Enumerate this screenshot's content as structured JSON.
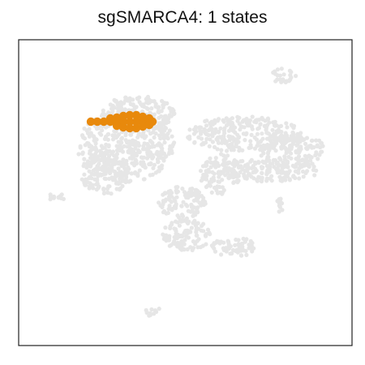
{
  "chart_data": {
    "type": "scatter",
    "title": "sgSMARCA4: 1 states",
    "xlabel": "",
    "ylabel": "",
    "axes_ticks": false,
    "grid": false,
    "background_color": "#e6e6e6",
    "highlight_color": "#e8890c",
    "series": [
      {
        "role": "background-cells",
        "color": "#e6e6e6",
        "regions": [
          {
            "kind": "ellipse",
            "cx": 155,
            "cy": 180,
            "rx": 60,
            "ry": 45
          },
          {
            "kind": "ellipse",
            "cx": 130,
            "cy": 215,
            "rx": 30,
            "ry": 25
          },
          {
            "kind": "ellipse",
            "cx": 170,
            "cy": 140,
            "rx": 45,
            "ry": 22
          },
          {
            "kind": "ellipse",
            "cx": 225,
            "cy": 250,
            "rx": 30,
            "ry": 20
          },
          {
            "kind": "ellipse",
            "cx": 230,
            "cy": 290,
            "rx": 30,
            "ry": 20
          },
          {
            "kind": "ellipse",
            "cx": 290,
            "cy": 305,
            "rx": 30,
            "ry": 12
          },
          {
            "kind": "ellipse",
            "cx": 300,
            "cy": 165,
            "rx": 70,
            "ry": 22
          },
          {
            "kind": "ellipse",
            "cx": 360,
            "cy": 185,
            "rx": 40,
            "ry": 22
          },
          {
            "kind": "ellipse",
            "cx": 330,
            "cy": 210,
            "rx": 65,
            "ry": 14
          },
          {
            "kind": "ellipse",
            "cx": 272,
            "cy": 215,
            "rx": 25,
            "ry": 25
          },
          {
            "kind": "ellipse",
            "cx": 349,
            "cy": 93,
            "rx": 16,
            "ry": 9
          },
          {
            "kind": "ellipse",
            "cx": 69,
            "cy": 243,
            "rx": 12,
            "ry": 4
          },
          {
            "kind": "ellipse",
            "cx": 345,
            "cy": 253,
            "rx": 4,
            "ry": 10
          },
          {
            "kind": "ellipse",
            "cx": 190,
            "cy": 385,
            "rx": 14,
            "ry": 5
          },
          {
            "kind": "ellipse",
            "cx": 240,
            "cy": 238,
            "rx": 5,
            "ry": 4
          }
        ]
      },
      {
        "role": "highlighted-state",
        "color": "#e8890c",
        "points": [
          {
            "x": 112,
            "y": 150
          },
          {
            "x": 120,
            "y": 150
          },
          {
            "x": 128,
            "y": 150
          },
          {
            "x": 136,
            "y": 150
          },
          {
            "x": 144,
            "y": 150
          },
          {
            "x": 152,
            "y": 150
          },
          {
            "x": 160,
            "y": 150
          },
          {
            "x": 168,
            "y": 150
          },
          {
            "x": 176,
            "y": 150
          },
          {
            "x": 184,
            "y": 150
          },
          {
            "x": 136,
            "y": 146
          },
          {
            "x": 144,
            "y": 145
          },
          {
            "x": 152,
            "y": 143
          },
          {
            "x": 160,
            "y": 142
          },
          {
            "x": 168,
            "y": 142
          },
          {
            "x": 176,
            "y": 144
          },
          {
            "x": 184,
            "y": 146
          },
          {
            "x": 144,
            "y": 155
          },
          {
            "x": 152,
            "y": 157
          },
          {
            "x": 160,
            "y": 158
          },
          {
            "x": 168,
            "y": 158
          },
          {
            "x": 176,
            "y": 156
          },
          {
            "x": 184,
            "y": 154
          },
          {
            "x": 188,
            "y": 150
          }
        ]
      }
    ]
  }
}
